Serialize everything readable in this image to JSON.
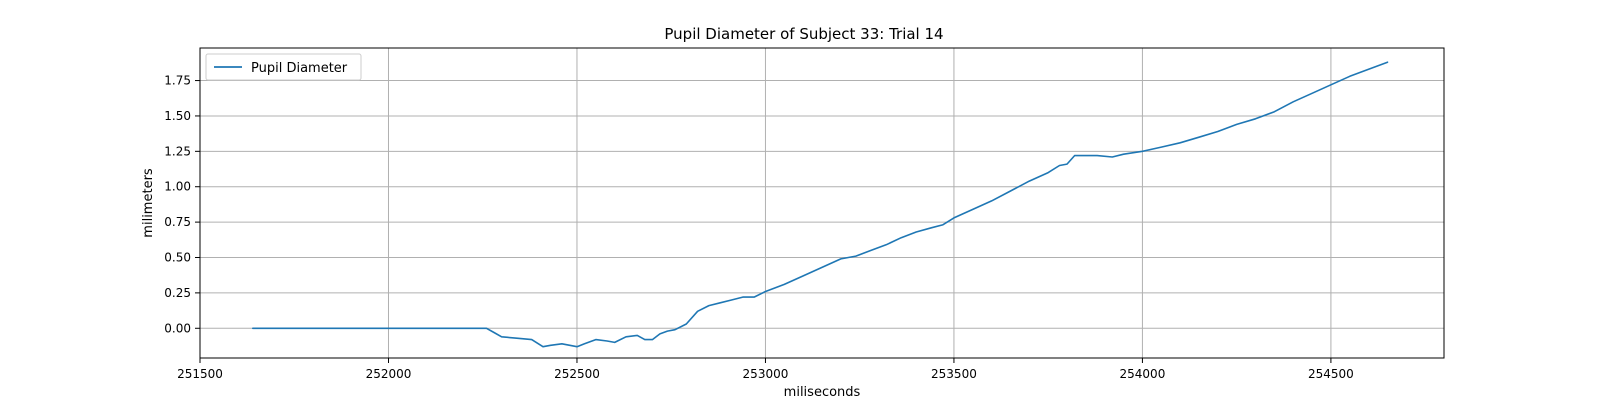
{
  "chart_data": {
    "type": "line",
    "title": "Pupil Diameter of Subject 33: Trial 14",
    "xlabel": "miliseconds",
    "ylabel": "milimeters",
    "xlim": [
      251500,
      254800
    ],
    "ylim": [
      -0.21,
      1.98
    ],
    "x_ticks": [
      251500,
      252000,
      252500,
      253000,
      253500,
      254000,
      254500
    ],
    "y_ticks": [
      0.0,
      0.25,
      0.5,
      0.75,
      1.0,
      1.25,
      1.5,
      1.75
    ],
    "x_tick_labels": [
      "251500",
      "252000",
      "252500",
      "253000",
      "253500",
      "254000",
      "254500"
    ],
    "y_tick_labels": [
      "0.00",
      "0.25",
      "0.50",
      "0.75",
      "1.00",
      "1.25",
      "1.50",
      "1.75"
    ],
    "grid": true,
    "legend_position": "top-left",
    "series": [
      {
        "name": "Pupil Diameter",
        "color": "#1f77b4",
        "x": [
          251640,
          251800,
          252000,
          252200,
          252260,
          252280,
          252300,
          252340,
          252380,
          252410,
          252430,
          252460,
          252500,
          252520,
          252550,
          252580,
          252600,
          252630,
          252660,
          252680,
          252700,
          252720,
          252740,
          252760,
          252790,
          252820,
          252850,
          252880,
          252910,
          252940,
          252970,
          253000,
          253050,
          253100,
          253150,
          253200,
          253240,
          253280,
          253320,
          253360,
          253400,
          253440,
          253470,
          253500,
          253550,
          253600,
          253650,
          253700,
          253750,
          253780,
          253800,
          253820,
          253850,
          253880,
          253920,
          253950,
          254000,
          254050,
          254100,
          254150,
          254200,
          254250,
          254300,
          254350,
          254400,
          254450,
          254500,
          254550,
          254600,
          254650
        ],
        "y": [
          0.0,
          0.0,
          0.0,
          0.0,
          0.0,
          -0.03,
          -0.06,
          -0.07,
          -0.08,
          -0.13,
          -0.12,
          -0.11,
          -0.13,
          -0.11,
          -0.08,
          -0.09,
          -0.1,
          -0.06,
          -0.05,
          -0.08,
          -0.08,
          -0.04,
          -0.02,
          -0.01,
          0.03,
          0.12,
          0.16,
          0.18,
          0.2,
          0.22,
          0.22,
          0.26,
          0.31,
          0.37,
          0.43,
          0.49,
          0.51,
          0.55,
          0.59,
          0.64,
          0.68,
          0.71,
          0.73,
          0.78,
          0.84,
          0.9,
          0.97,
          1.04,
          1.1,
          1.15,
          1.16,
          1.22,
          1.22,
          1.22,
          1.21,
          1.23,
          1.25,
          1.28,
          1.31,
          1.35,
          1.39,
          1.44,
          1.48,
          1.53,
          1.6,
          1.66,
          1.72,
          1.78,
          1.83,
          1.88
        ]
      }
    ]
  }
}
